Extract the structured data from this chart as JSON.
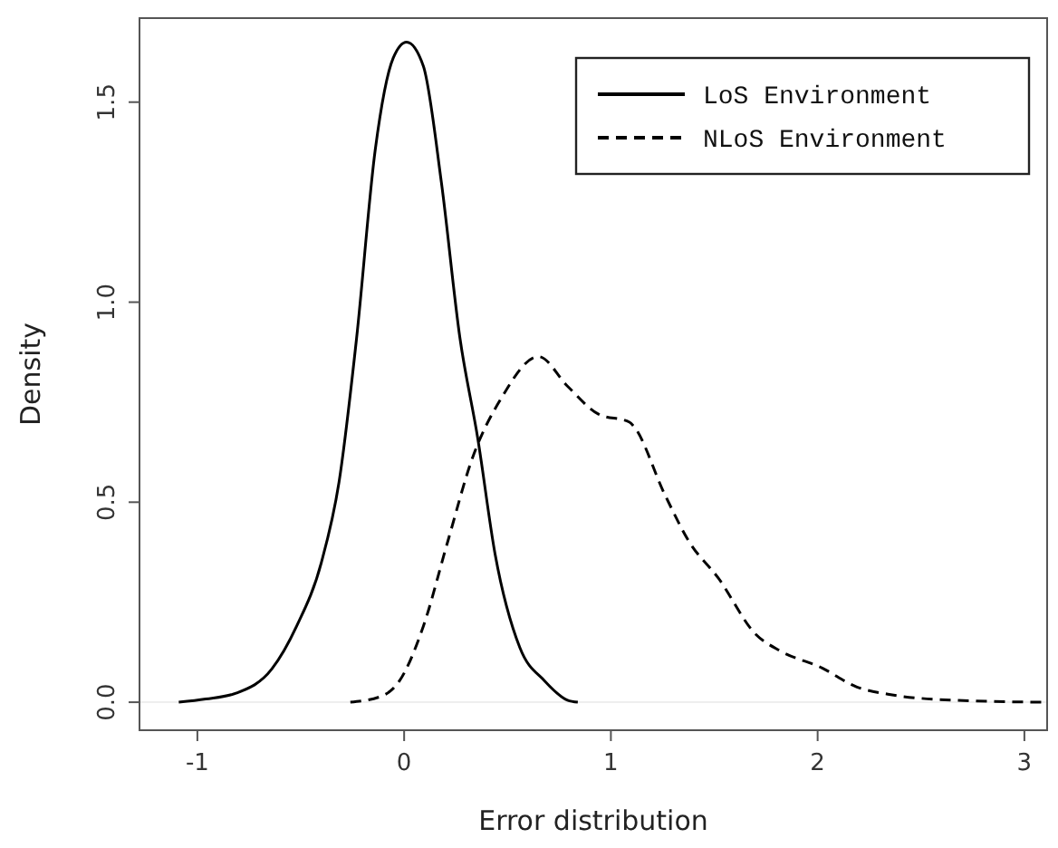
{
  "chart_data": {
    "type": "line",
    "xlabel": "Error distribution",
    "ylabel": "Density",
    "xlim": [
      -1.28,
      3.11
    ],
    "ylim": [
      -0.07,
      1.71
    ],
    "xticks": [
      -1,
      0,
      1,
      2,
      3
    ],
    "yticks": [
      {
        "value": 0,
        "label": "0.0"
      },
      {
        "value": 0.5,
        "label": "0.5"
      },
      {
        "value": 1,
        "label": "1.0"
      },
      {
        "value": 1.5,
        "label": "1.5"
      }
    ],
    "grid": false,
    "legend": "top right",
    "marker": "none",
    "ref_lines": [
      {
        "axis": "y",
        "value": 0,
        "color": "#eeeeee"
      }
    ],
    "series": [
      {
        "name": "LoS Environment",
        "color": "#000000",
        "line_style": "solid",
        "x": [
          -1.09,
          -0.96,
          -0.81,
          -0.64,
          -0.52,
          -0.4,
          -0.315,
          -0.23,
          -0.14,
          -0.053,
          0.012,
          0.093,
          0.18,
          0.27,
          0.356,
          0.44,
          0.56,
          0.68,
          0.79,
          0.84
        ],
        "values": [
          0,
          0.008,
          0.023,
          0.083,
          0.19,
          0.35,
          0.55,
          0.91,
          1.38,
          1.61,
          1.65,
          1.59,
          1.3,
          0.91,
          0.66,
          0.37,
          0.136,
          0.053,
          0.005,
          0
        ]
      },
      {
        "name": "NLoS Environment",
        "color": "#000000",
        "line_style": "dashed",
        "x": [
          -0.26,
          -0.11,
          -0.023,
          0.093,
          0.21,
          0.33,
          0.47,
          0.65,
          0.79,
          0.94,
          1.09,
          1.11,
          1.26,
          1.38,
          1.52,
          1.7,
          1.82,
          2.02,
          2.19,
          2.34,
          2.66,
          3.09
        ],
        "values": [
          0,
          0.015,
          0.053,
          0.19,
          0.4,
          0.61,
          0.76,
          0.864,
          0.79,
          0.72,
          0.7,
          0.69,
          0.52,
          0.4,
          0.31,
          0.17,
          0.128,
          0.086,
          0.038,
          0.02,
          0.005,
          0
        ]
      }
    ]
  }
}
